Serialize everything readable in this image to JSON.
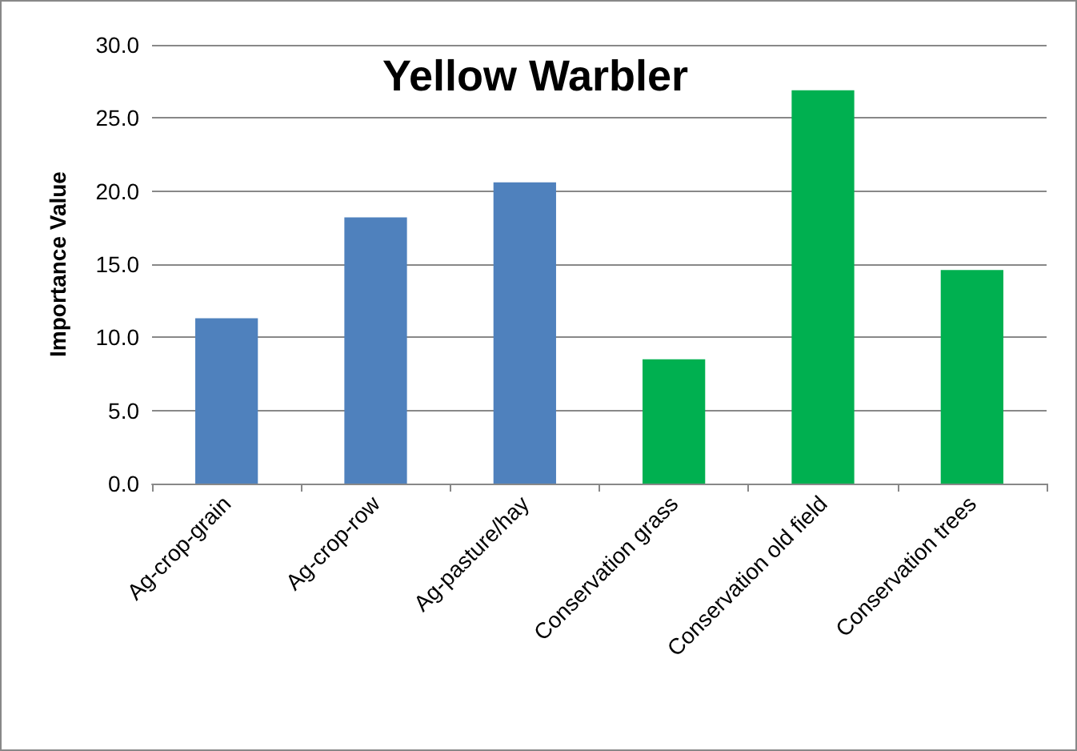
{
  "chart_data": {
    "type": "bar",
    "title": "Yellow Warbler",
    "ylabel": "Importance Value",
    "categories": [
      "Ag-crop-grain",
      "Ag-crop-row",
      "Ag-pasture/hay",
      "Conservation grass",
      "Conservation old field",
      "Conservation trees"
    ],
    "values": [
      11.3,
      18.2,
      20.6,
      8.5,
      26.9,
      14.6
    ],
    "colors": [
      "#4f81bd",
      "#4f81bd",
      "#4f81bd",
      "#00b050",
      "#00b050",
      "#00b050"
    ],
    "ylim": [
      0,
      30
    ],
    "yticks": [
      {
        "value": 0,
        "label": "0.0"
      },
      {
        "value": 5,
        "label": "5.0"
      },
      {
        "value": 10,
        "label": "10.0"
      },
      {
        "value": 15,
        "label": "15.0"
      },
      {
        "value": 20,
        "label": "20.0"
      },
      {
        "value": 25,
        "label": "25.0"
      },
      {
        "value": 30,
        "label": "30.0"
      }
    ],
    "grid": "y"
  }
}
